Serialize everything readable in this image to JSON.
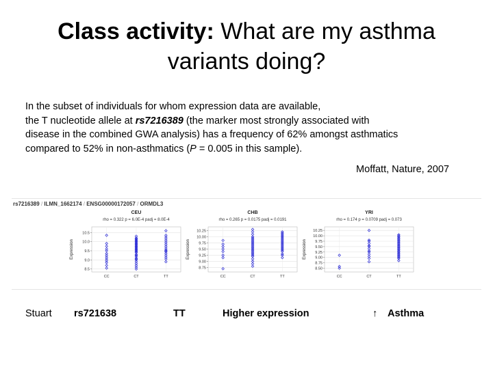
{
  "slide": {
    "title_bold": "Class activity:",
    "title_rest": " What are my asthma",
    "title_line2": "variants doing?",
    "body_line1": "In the subset of individuals for whom expression data are available,",
    "body_line2_a": "the T nucleotide allele at ",
    "body_line2_b": "rs7216389",
    "body_line2_c": " (the marker most strongly associated with",
    "body_line3": "disease in the combined GWA analysis) has a frequency of 62% amongst asthmatics",
    "body_line4_a": "compared to 52% in non-asthmatics (",
    "body_line4_b": "P",
    "body_line4_c": " = 0.005 in this sample).",
    "citation": "Moffatt, Nature, 2007"
  },
  "figure": {
    "header_snp": "rs7216389",
    "header_probe": "ILMN_1662174",
    "header_ensg": "ENSG00000172057",
    "header_gene": "ORMDL3",
    "sep": " / ",
    "point_color": "#2a2ad6"
  },
  "chart_data": [
    {
      "type": "scatter",
      "title": "CEU",
      "subtitle": "rho = 0.322    p = 6.0E-4    padj = 8.0E-4",
      "ylabel": "Expression",
      "categories": [
        "CC",
        "CT",
        "TT"
      ],
      "ylim": [
        8.45,
        10.7
      ],
      "yticks": [
        8.5,
        9.0,
        9.5,
        10.0,
        10.5
      ],
      "ytick_labels": [
        "8.5",
        "9.0",
        "9.5",
        "10.0",
        "10.5"
      ],
      "series": [
        {
          "category": "CC",
          "values": [
            8.55,
            8.7,
            8.85,
            8.95,
            9.05,
            9.15,
            9.25,
            9.35,
            9.5,
            9.6,
            9.75,
            9.9,
            10.35
          ]
        },
        {
          "category": "CT",
          "values": [
            8.5,
            8.6,
            8.7,
            8.8,
            8.9,
            9.0,
            9.05,
            9.1,
            9.2,
            9.25,
            9.3,
            9.4,
            9.45,
            9.5,
            9.55,
            9.6,
            9.65,
            9.7,
            9.75,
            9.8,
            9.85,
            9.9,
            9.95,
            10.0,
            10.05,
            10.1,
            10.15,
            10.2,
            10.3
          ]
        },
        {
          "category": "TT",
          "values": [
            8.9,
            9.05,
            9.15,
            9.25,
            9.35,
            9.45,
            9.5,
            9.55,
            9.65,
            9.75,
            9.85,
            9.95,
            10.05,
            10.15,
            10.25,
            10.35,
            10.6
          ]
        }
      ]
    },
    {
      "type": "scatter",
      "title": "CHB",
      "subtitle": "rho = 0.265    p = 0.0175    padj = 0.0191",
      "ylabel": "Expression",
      "categories": [
        "CC",
        "CT",
        "TT"
      ],
      "ylim": [
        8.65,
        10.32
      ],
      "yticks": [
        8.75,
        9.0,
        9.25,
        9.5,
        9.75,
        10.0,
        10.25
      ],
      "ytick_labels": [
        "8.75",
        "9.00",
        "9.25",
        "9.50",
        "9.75",
        "10.00",
        "10.25"
      ],
      "series": [
        {
          "category": "CC",
          "values": [
            8.7,
            9.15,
            9.25,
            9.4,
            9.5,
            9.6,
            9.7,
            9.85
          ]
        },
        {
          "category": "CT",
          "values": [
            8.8,
            8.9,
            9.0,
            9.1,
            9.2,
            9.25,
            9.3,
            9.35,
            9.4,
            9.45,
            9.5,
            9.55,
            9.6,
            9.65,
            9.7,
            9.75,
            9.8,
            9.85,
            9.9,
            9.95,
            10.0,
            10.1,
            10.2,
            10.3
          ]
        },
        {
          "category": "TT",
          "values": [
            9.15,
            9.25,
            9.3,
            9.4,
            9.45,
            9.5,
            9.55,
            9.6,
            9.65,
            9.7,
            9.75,
            9.8,
            9.85,
            9.9,
            9.95,
            10.0,
            10.05,
            10.1,
            10.15,
            10.2
          ]
        }
      ]
    },
    {
      "type": "scatter",
      "title": "YRI",
      "subtitle": "rho = 0.174    p = 0.0709    padj = 0.073",
      "ylabel": "Expression",
      "categories": [
        "CC",
        "CT",
        "TT"
      ],
      "ylim": [
        8.42,
        10.32
      ],
      "yticks": [
        8.5,
        8.75,
        9.0,
        9.25,
        9.5,
        9.75,
        10.0,
        10.25
      ],
      "ytick_labels": [
        "8.50",
        "8.75",
        "9.00",
        "9.25",
        "9.50",
        "9.75",
        "10.00",
        "10.25"
      ],
      "series": [
        {
          "category": "CC",
          "values": [
            8.5,
            8.58,
            9.1
          ]
        },
        {
          "category": "CT",
          "values": [
            8.8,
            8.95,
            9.05,
            9.15,
            9.25,
            9.3,
            9.4,
            9.5,
            9.55,
            9.65,
            9.75,
            9.8,
            10.25
          ]
        },
        {
          "category": "TT",
          "values": [
            8.85,
            8.95,
            9.0,
            9.05,
            9.1,
            9.15,
            9.2,
            9.25,
            9.3,
            9.35,
            9.4,
            9.45,
            9.5,
            9.55,
            9.6,
            9.65,
            9.7,
            9.75,
            9.8,
            9.85,
            9.9,
            9.95,
            10.0,
            10.05
          ]
        }
      ]
    }
  ],
  "summary_row": {
    "name": "Stuart",
    "snp": "rs721638",
    "genotype": "TT",
    "effect": "Higher expression",
    "arrow": "↑",
    "trait": "Asthma"
  }
}
